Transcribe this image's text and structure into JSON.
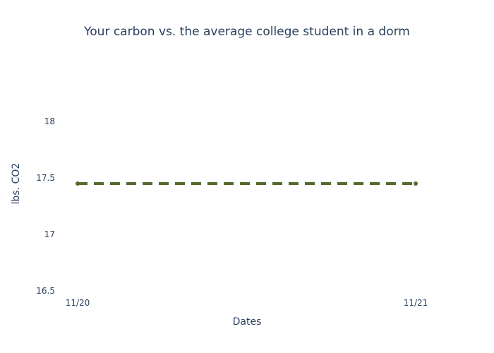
{
  "chart_data": {
    "type": "line",
    "title": "Your carbon vs. the average college student in a dorm",
    "xlabel": "Dates",
    "ylabel": "lbs. CO2",
    "categories": [
      "11/20",
      "11/21"
    ],
    "ylim": [
      16.5,
      18.5
    ],
    "yticks": [
      16.5,
      17,
      17.5,
      18
    ],
    "ytick_labels": [
      "16.5",
      "17",
      "17.5",
      "18"
    ],
    "grid": false,
    "legend": "none",
    "series": [
      {
        "values": [
          17.45,
          17.45
        ],
        "color": "#556b2f",
        "line_style": "dashed",
        "markers": true
      }
    ]
  }
}
